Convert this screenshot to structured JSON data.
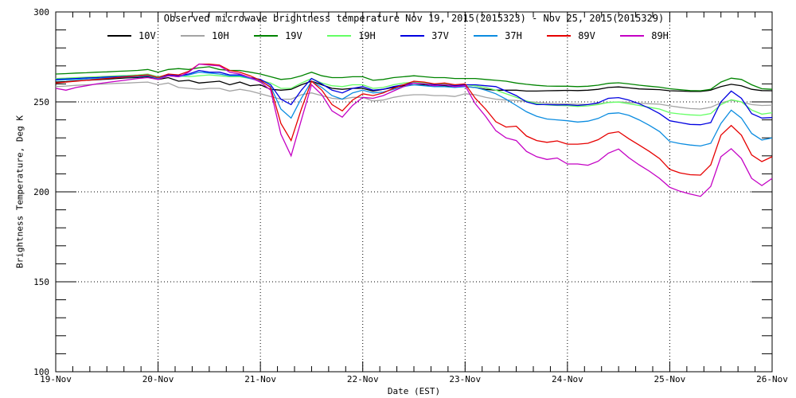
{
  "figure": {
    "title": "Observed microwave brightness temperature Nov 19, 2015(2015323) - Nov 25, 2015(2015329)",
    "x_axis": {
      "label": "Date (EST)",
      "tick_labels": [
        "19-Nov",
        "20-Nov",
        "21-Nov",
        "22-Nov",
        "23-Nov",
        "24-Nov",
        "25-Nov",
        "26-Nov"
      ]
    },
    "y_axis": {
      "label": "Brightness Temperature, Deg K",
      "tick_labels": [
        "100",
        "150",
        "200",
        "250",
        "300"
      ]
    }
  },
  "chart_data": {
    "type": "line",
    "title": "Observed microwave brightness temperature Nov 19, 2015(2015323) - Nov 25, 2015(2015329)",
    "xlabel": "Date (EST)",
    "ylabel": "Brightness Temperature, Deg K",
    "x_start": 19,
    "x_end": 26,
    "x_step_days": 0.1,
    "x_units": "day of November 2015 (EST)",
    "ylim": [
      100,
      300
    ],
    "y_major_ticks": [
      100,
      150,
      200,
      250,
      300
    ],
    "y_minor_tick_interval": 10,
    "x_major_tick_interval_days": 1,
    "x_minor_ticks_per_day": 6,
    "grid": "dotted lines at y=150,200,250 and at each day 20-25",
    "legend_position": "top-inside",
    "frame_color": "#000000",
    "series": [
      {
        "name": "10V",
        "color": "#000000",
        "values": [
          261,
          261.3,
          261.7,
          262,
          262.3,
          262.6,
          263,
          263.3,
          263.6,
          264,
          262.5,
          263.5,
          261.5,
          262,
          260.5,
          261,
          261.5,
          259.5,
          261,
          259,
          259.5,
          257,
          256.5,
          257,
          259.5,
          261.5,
          259.5,
          257.5,
          257,
          257.5,
          257.5,
          256,
          257,
          258,
          259,
          259.5,
          259.5,
          259,
          259,
          258.5,
          258.5,
          258,
          257,
          256.5,
          256.5,
          256.5,
          256,
          256,
          256.2,
          256.3,
          256.4,
          256.3,
          256.5,
          257,
          258,
          258.3,
          257.8,
          257.2,
          257,
          256.8,
          256.2,
          256,
          255.8,
          255.8,
          256.5,
          258.5,
          259.8,
          259,
          257,
          256.3,
          256.2
        ]
      },
      {
        "name": "10H",
        "color": "#a3a3a3",
        "values": [
          258.5,
          258.8,
          259.2,
          259.5,
          259.8,
          260,
          260.3,
          260.5,
          260.8,
          261,
          259.5,
          260.5,
          258,
          257.5,
          257,
          257.5,
          257.5,
          256,
          257,
          256,
          254.5,
          253,
          251.5,
          251.5,
          254,
          255,
          253.5,
          252,
          251.5,
          252.5,
          252.5,
          250.5,
          251,
          252.5,
          253.5,
          254,
          254,
          253.5,
          253.5,
          253,
          254.5,
          254,
          252.5,
          251.5,
          251,
          250.8,
          250.3,
          249.8,
          249.3,
          249,
          248.9,
          248.7,
          248.6,
          249,
          249.7,
          250,
          249.7,
          249.3,
          249,
          248.7,
          247.8,
          247,
          246.3,
          246,
          247,
          249.5,
          250.9,
          250,
          248.5,
          248,
          248.2
        ]
      },
      {
        "name": "19V",
        "color": "#008400",
        "values": [
          265.5,
          265.7,
          266,
          266.2,
          266.5,
          266.7,
          267,
          267.2,
          267.5,
          268,
          266.5,
          268,
          268.5,
          268,
          269,
          269.5,
          268,
          267.5,
          267.5,
          266.5,
          265.5,
          264,
          262.5,
          263,
          264.5,
          266.5,
          264.5,
          263.5,
          263.5,
          264,
          264,
          262,
          262.5,
          263.5,
          264,
          264.5,
          264,
          263.5,
          263.5,
          263,
          263,
          263,
          262.5,
          262,
          261.5,
          260.5,
          259.8,
          259.2,
          258.8,
          258.7,
          258.7,
          258.5,
          258.7,
          259.3,
          260.3,
          260.6,
          260,
          259.3,
          258.7,
          258.2,
          257.3,
          256.8,
          256.3,
          256.2,
          257,
          261,
          263.2,
          262.5,
          259.5,
          257.3,
          257
        ]
      },
      {
        "name": "19H",
        "color": "#64ff64",
        "values": [
          263,
          263.2,
          263.5,
          263.7,
          264,
          264.2,
          264.5,
          264.7,
          265,
          265.5,
          264,
          265,
          264.5,
          264,
          264.5,
          265,
          264.5,
          264,
          264,
          263,
          262,
          260.5,
          257.5,
          257.5,
          260.5,
          263,
          260.5,
          259,
          258.5,
          259.5,
          259.5,
          257.5,
          258,
          259.5,
          260.5,
          261,
          260.5,
          260,
          260,
          259.5,
          259.5,
          259,
          258,
          256.5,
          254.5,
          252.5,
          250.5,
          249,
          248.3,
          248,
          247.9,
          247.5,
          247.8,
          248.5,
          249.7,
          249.9,
          249,
          248,
          247,
          246,
          244,
          243.3,
          242.8,
          242.5,
          243.5,
          248.5,
          251.2,
          250,
          245.5,
          243.2,
          244
        ]
      },
      {
        "name": "37V",
        "color": "#0000e0",
        "values": [
          262.5,
          262.8,
          263,
          263.3,
          263.5,
          263.8,
          264,
          264.2,
          264.5,
          265,
          263.5,
          265,
          264.5,
          265.5,
          267.5,
          266.5,
          266.5,
          265,
          265,
          263.5,
          262.5,
          259.5,
          251.5,
          248.5,
          256.5,
          263,
          260,
          256.5,
          255,
          257.5,
          258.5,
          256.5,
          257,
          258.5,
          259.5,
          260.5,
          260,
          259.5,
          259.5,
          259,
          259.5,
          259.5,
          259,
          258.5,
          256,
          253.5,
          250,
          248.5,
          248.5,
          248.3,
          248.4,
          248,
          248.5,
          249.5,
          252,
          252.4,
          251,
          249,
          246.5,
          243.5,
          239.5,
          238.5,
          237.5,
          237.3,
          238.5,
          250,
          256,
          252,
          243.5,
          241,
          241.3
        ]
      },
      {
        "name": "37H",
        "color": "#0b8ce0",
        "values": [
          262,
          262.3,
          262.5,
          262.8,
          263,
          263.3,
          263.5,
          263.8,
          264,
          264.5,
          263,
          264.5,
          264,
          265,
          266.5,
          266,
          265.5,
          264.5,
          264.5,
          263,
          261.5,
          258.5,
          246,
          241,
          252,
          261.5,
          258,
          253.5,
          251.5,
          255,
          256.5,
          255,
          255.5,
          257,
          258.5,
          259.5,
          259,
          258.5,
          258.5,
          258,
          258.5,
          258,
          256.5,
          254.5,
          251.5,
          248,
          244.5,
          242,
          240.5,
          240,
          239.5,
          238.8,
          239.3,
          240.8,
          243.5,
          243.9,
          242.5,
          240,
          237,
          233.5,
          228,
          226.8,
          226,
          225.5,
          227,
          238,
          245.4,
          241,
          232.5,
          228.8,
          230
        ]
      },
      {
        "name": "89V",
        "color": "#e60000",
        "values": [
          260.5,
          261,
          261.5,
          262,
          262.5,
          263,
          263.5,
          264,
          264.5,
          265,
          263.5,
          265.5,
          265,
          267,
          271,
          271,
          270.5,
          267.5,
          266.5,
          264.5,
          262,
          258,
          238,
          228.5,
          246,
          261.5,
          256.5,
          248.5,
          245,
          251,
          254.5,
          253.5,
          255,
          257.5,
          259.5,
          261.5,
          261,
          260,
          260.5,
          259.5,
          260,
          252,
          246,
          239,
          236,
          236.5,
          231,
          228.5,
          227.5,
          228.3,
          226.5,
          226.5,
          227,
          229,
          232.5,
          233.4,
          229.5,
          226,
          222.5,
          218.5,
          212.5,
          210.5,
          209.5,
          209.3,
          215,
          231.5,
          236.9,
          231.5,
          220.5,
          216.8,
          219.5
        ]
      },
      {
        "name": "89H",
        "color": "#c400c4",
        "values": [
          257.5,
          256.5,
          258,
          259,
          260,
          260.8,
          261.5,
          262.2,
          263,
          263.5,
          262.5,
          264.5,
          264,
          266.5,
          271,
          270.5,
          270,
          266.5,
          265.5,
          263.5,
          261,
          256.5,
          232,
          220,
          240,
          259.5,
          254,
          245,
          241.5,
          248,
          252.5,
          252,
          253.5,
          256,
          258.5,
          260.5,
          260,
          259,
          259.5,
          258.5,
          259,
          249,
          242,
          234,
          230,
          228.5,
          222.5,
          219.5,
          218,
          218.8,
          215.5,
          215.5,
          214.8,
          217,
          221.5,
          223.8,
          219,
          215,
          211.5,
          207.5,
          202.5,
          200.3,
          198.8,
          197.5,
          203,
          219.5,
          224,
          218.5,
          207.5,
          203.5,
          207.5
        ]
      }
    ]
  }
}
